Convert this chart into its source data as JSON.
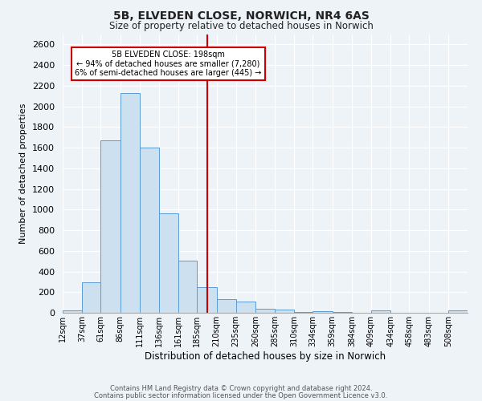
{
  "title": "5B, ELVEDEN CLOSE, NORWICH, NR4 6AS",
  "subtitle": "Size of property relative to detached houses in Norwich",
  "xlabel": "Distribution of detached houses by size in Norwich",
  "ylabel": "Number of detached properties",
  "bin_labels": [
    "12sqm",
    "37sqm",
    "61sqm",
    "86sqm",
    "111sqm",
    "136sqm",
    "161sqm",
    "185sqm",
    "210sqm",
    "235sqm",
    "260sqm",
    "285sqm",
    "310sqm",
    "334sqm",
    "359sqm",
    "384sqm",
    "409sqm",
    "434sqm",
    "458sqm",
    "483sqm",
    "508sqm"
  ],
  "bar_heights": [
    20,
    295,
    1670,
    2130,
    1600,
    960,
    505,
    250,
    130,
    105,
    35,
    30,
    5,
    15,
    5,
    0,
    20,
    0,
    0,
    0,
    20
  ],
  "bar_color": "#cce0f0",
  "bar_edge_color": "#5b9bd5",
  "vline_x": 198,
  "vline_color": "#cc0000",
  "annotation_title": "5B ELVEDEN CLOSE: 198sqm",
  "annotation_line1": "← 94% of detached houses are smaller (7,280)",
  "annotation_line2": "6% of semi-detached houses are larger (445) →",
  "annotation_box_color": "#ffffff",
  "annotation_box_edge": "#cc0000",
  "ylim": [
    0,
    2700
  ],
  "yticks": [
    0,
    200,
    400,
    600,
    800,
    1000,
    1200,
    1400,
    1600,
    1800,
    2000,
    2200,
    2400,
    2600
  ],
  "footnote1": "Contains HM Land Registry data © Crown copyright and database right 2024.",
  "footnote2": "Contains public sector information licensed under the Open Government Licence v3.0.",
  "bg_color": "#eef3f8",
  "plot_bg_color": "#eef3f8",
  "bin_edges": [
    12,
    37,
    61,
    86,
    111,
    136,
    161,
    185,
    210,
    235,
    260,
    285,
    310,
    334,
    359,
    384,
    409,
    434,
    458,
    483,
    508,
    533
  ]
}
